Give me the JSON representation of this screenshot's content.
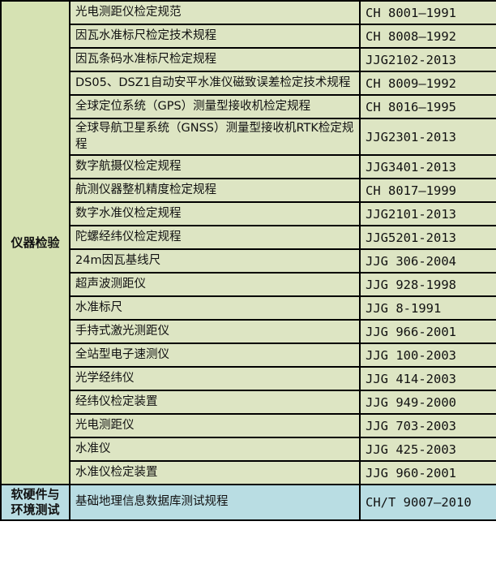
{
  "table": {
    "colors": {
      "category_bg_green": "#d6e2b3",
      "cell_bg_green": "#dde5c3",
      "highlight_bg_blue": "#b9dde3",
      "border": "#000000",
      "text": "#111111"
    },
    "columns": [
      "category",
      "standard_name",
      "standard_code"
    ],
    "categories": [
      {
        "label": "仪器检验",
        "highlighted": false,
        "rows": [
          {
            "name": "光电测距仪检定规范",
            "code": "CH 8001—1991"
          },
          {
            "name": "因瓦水准标尺检定技术规程",
            "code": "CH 8008—1992"
          },
          {
            "name": "因瓦条码水准标尺检定规程",
            "code": "JJG2102-2013"
          },
          {
            "name": "DS05、DSZ1自动安平水准仪磁致误差检定技术规程",
            "code": "CH 8009—1992"
          },
          {
            "name": "全球定位系统（GPS）测量型接收机检定规程",
            "code": "CH 8016—1995"
          },
          {
            "name": "全球导航卫星系统（GNSS）测量型接收机RTK检定规程",
            "code": "JJG2301-2013"
          },
          {
            "name": "数字航摄仪检定规程",
            "code": "JJG3401-2013"
          },
          {
            "name": "航测仪器整机精度检定规程",
            "code": "CH 8017—1999"
          },
          {
            "name": "数字水准仪检定规程",
            "code": "JJG2101-2013"
          },
          {
            "name": "陀螺经纬仪检定规程",
            "code": "JJG5201-2013"
          },
          {
            "name": "24m因瓦基线尺",
            "code": "JJG 306-2004"
          },
          {
            "name": "超声波测距仪",
            "code": "JJG 928-1998"
          },
          {
            "name": "水准标尺",
            "code": "JJG 8-1991"
          },
          {
            "name": "手持式激光测距仪",
            "code": "JJG 966-2001"
          },
          {
            "name": "全站型电子速测仪",
            "code": "JJG 100-2003"
          },
          {
            "name": "光学经纬仪",
            "code": "JJG 414-2003"
          },
          {
            "name": "经纬仪检定装置",
            "code": "JJG 949-2000"
          },
          {
            "name": "光电测距仪",
            "code": "JJG 703-2003"
          },
          {
            "name": "水准仪",
            "code": "JJG 425-2003"
          },
          {
            "name": "水准仪检定装置",
            "code": "JJG 960-2001"
          }
        ]
      },
      {
        "label": "软硬件与\n环境测试",
        "highlighted": true,
        "rows": [
          {
            "name": "基础地理信息数据库测试规程",
            "code": "CH/T 9007—2010"
          }
        ]
      }
    ]
  }
}
